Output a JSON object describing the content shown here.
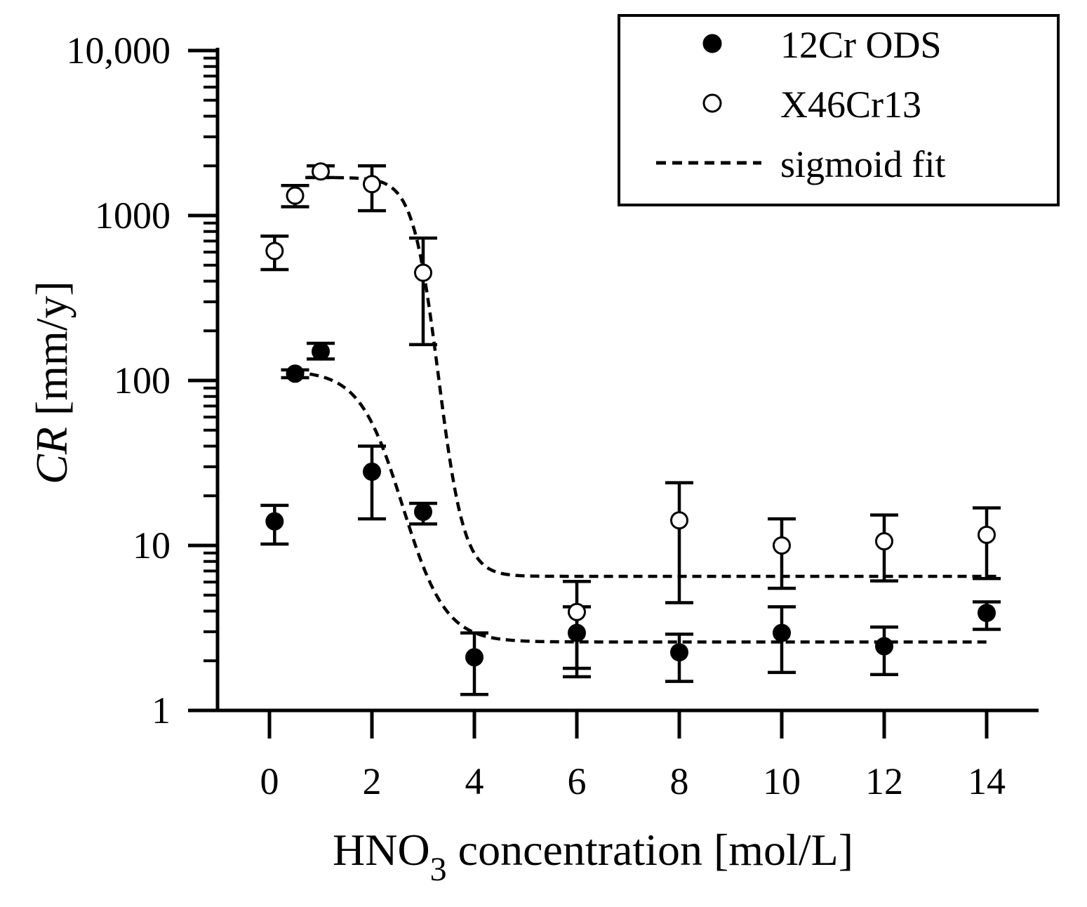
{
  "chart_data": {
    "type": "scatter",
    "title": "",
    "xlabel": {
      "prefix": "HNO",
      "subscript": "3",
      "suffix": " concentration [mol/L]"
    },
    "ylabel": {
      "italic": "CR",
      "rest": " [mm/y]"
    },
    "x_ticks": [
      "0",
      "2",
      "4",
      "6",
      "8",
      "10",
      "12",
      "14"
    ],
    "y_ticks": [
      "1",
      "10",
      "100",
      "1000",
      "10,000"
    ],
    "xlim": [
      -1.5,
      15
    ],
    "ylim": [
      1,
      10000
    ],
    "yscale": "log",
    "legend_position": "top-right",
    "legend": [
      "12Cr ODS",
      "X46Cr13",
      "sigmoid fit"
    ],
    "series": [
      {
        "name": "12Cr ODS",
        "marker": "filled-circle",
        "points": [
          {
            "x": 0.1,
            "y": 14,
            "y_low": 10.2,
            "y_high": 17.5
          },
          {
            "x": 0.5,
            "y": 110,
            "y_low": 104,
            "y_high": 116
          },
          {
            "x": 1,
            "y": 150,
            "y_low": 135,
            "y_high": 168
          },
          {
            "x": 2,
            "y": 28,
            "y_low": 14.5,
            "y_high": 40
          },
          {
            "x": 3,
            "y": 16,
            "y_low": 13.5,
            "y_high": 18
          },
          {
            "x": 4,
            "y": 2.1,
            "y_low": 1.25,
            "y_high": 2.95
          },
          {
            "x": 6,
            "y": 2.95,
            "y_low": 1.6,
            "y_high": 4.25
          },
          {
            "x": 8,
            "y": 2.25,
            "y_low": 1.5,
            "y_high": 2.9
          },
          {
            "x": 10,
            "y": 2.95,
            "y_low": 1.7,
            "y_high": 4.25
          },
          {
            "x": 12,
            "y": 2.45,
            "y_low": 1.65,
            "y_high": 3.2
          },
          {
            "x": 14,
            "y": 3.9,
            "y_low": 3.1,
            "y_high": 4.55
          }
        ]
      },
      {
        "name": "X46Cr13",
        "marker": "open-circle",
        "points": [
          {
            "x": 0.1,
            "y": 610,
            "y_low": 470,
            "y_high": 750
          },
          {
            "x": 0.5,
            "y": 1320,
            "y_low": 1130,
            "y_high": 1520
          },
          {
            "x": 1,
            "y": 1850,
            "y_low": 1700,
            "y_high": 2000
          },
          {
            "x": 2,
            "y": 1550,
            "y_low": 1070,
            "y_high": 2000
          },
          {
            "x": 3,
            "y": 450,
            "y_low": 165,
            "y_high": 730
          },
          {
            "x": 6,
            "y": 3.95,
            "y_low": 1.8,
            "y_high": 6.05
          },
          {
            "x": 8,
            "y": 14.2,
            "y_low": 4.5,
            "y_high": 24
          },
          {
            "x": 10,
            "y": 10,
            "y_low": 5.5,
            "y_high": 14.5
          },
          {
            "x": 12,
            "y": 10.6,
            "y_low": 6.1,
            "y_high": 15.3
          },
          {
            "x": 14,
            "y": 11.6,
            "y_low": 6.3,
            "y_high": 16.9
          }
        ]
      }
    ],
    "fits": [
      {
        "name": "12Cr ODS fit",
        "style": "dashed",
        "x_start": 0.5,
        "x_end": 14,
        "top": 115,
        "bottom": 2.6,
        "x0": 2.6,
        "width": 0.42
      },
      {
        "name": "X46Cr13 fit",
        "style": "dashed",
        "x_start": 0.7,
        "x_end": 14.2,
        "top": 1700,
        "bottom": 6.5,
        "x0": 3.3,
        "width": 0.25
      }
    ]
  }
}
